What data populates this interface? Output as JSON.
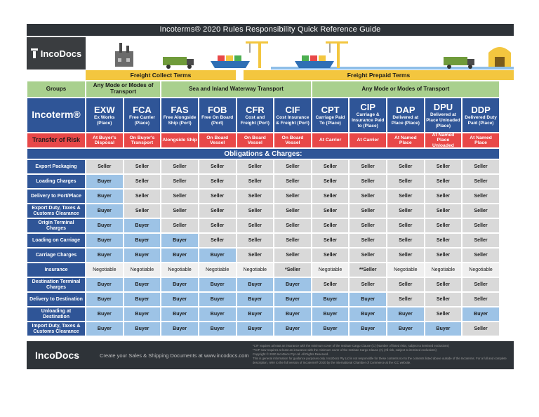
{
  "title": "Incoterms® 2020 Rules Responsibility Quick Reference Guide",
  "brand": "IncoDocs",
  "sections": {
    "collect": "Freight Collect Terms",
    "prepaid": "Freight Prepaid Terms"
  },
  "groups_label": "Groups",
  "groups": {
    "any_mode_1": "Any Mode or Modes of Transport",
    "sea": "Sea and Inland Waterway Transport",
    "any_mode_2": "Any Mode or Modes of Transport"
  },
  "incoterm_label": "Incoterm®",
  "risk_label": "Transfer of Risk",
  "obligations_label": "Obligations & Charges:",
  "terms": [
    {
      "code": "EXW",
      "desc": "Ex Works (Place)",
      "risk": "At Buyer's Disposal"
    },
    {
      "code": "FCA",
      "desc": "Free Carrier (Place)",
      "risk": "On Buyer's Transport"
    },
    {
      "code": "FAS",
      "desc": "Free Alongside Ship (Port)",
      "risk": "Alongside Ship"
    },
    {
      "code": "FOB",
      "desc": "Free On Board (Port)",
      "risk": "On Board Vessel"
    },
    {
      "code": "CFR",
      "desc": "Cost and Freight (Port)",
      "risk": "On Board Vessel"
    },
    {
      "code": "CIF",
      "desc": "Cost Insurance & Freight (Port)",
      "risk": "On Board Vessel"
    },
    {
      "code": "CPT",
      "desc": "Carriage Paid To (Place)",
      "risk": "At Carrier"
    },
    {
      "code": "CIP",
      "desc": "Carriage & Insurance Paid to (Place)",
      "risk": "At Carrier"
    },
    {
      "code": "DAP",
      "desc": "Delivered at Place (Place)",
      "risk": "At Named Place"
    },
    {
      "code": "DPU",
      "desc": "Delivered at Place Unloaded (Place)",
      "risk": "At Named Place Unloaded"
    },
    {
      "code": "DDP",
      "desc": "Delivered Duty Paid (Place)",
      "risk": "At Named Place"
    }
  ],
  "rows": [
    {
      "label": "Export Packaging",
      "values": [
        "Seller",
        "Seller",
        "Seller",
        "Seller",
        "Seller",
        "Seller",
        "Seller",
        "Seller",
        "Seller",
        "Seller",
        "Seller"
      ]
    },
    {
      "label": "Loading Charges",
      "values": [
        "Buyer",
        "Seller",
        "Seller",
        "Seller",
        "Seller",
        "Seller",
        "Seller",
        "Seller",
        "Seller",
        "Seller",
        "Seller"
      ]
    },
    {
      "label": "Delivery to Port/Place",
      "values": [
        "Buyer",
        "Seller",
        "Seller",
        "Seller",
        "Seller",
        "Seller",
        "Seller",
        "Seller",
        "Seller",
        "Seller",
        "Seller"
      ]
    },
    {
      "label": "Export Duty, Taxes & Customs Clearance",
      "values": [
        "Buyer",
        "Seller",
        "Seller",
        "Seller",
        "Seller",
        "Seller",
        "Seller",
        "Seller",
        "Seller",
        "Seller",
        "Seller"
      ]
    },
    {
      "label": "Origin Terminal Charges",
      "values": [
        "Buyer",
        "Buyer",
        "Seller",
        "Seller",
        "Seller",
        "Seller",
        "Seller",
        "Seller",
        "Seller",
        "Seller",
        "Seller"
      ]
    },
    {
      "label": "Loading on Carriage",
      "values": [
        "Buyer",
        "Buyer",
        "Buyer",
        "Seller",
        "Seller",
        "Seller",
        "Seller",
        "Seller",
        "Seller",
        "Seller",
        "Seller"
      ]
    },
    {
      "label": "Carriage Charges",
      "values": [
        "Buyer",
        "Buyer",
        "Buyer",
        "Buyer",
        "Seller",
        "Seller",
        "Seller",
        "Seller",
        "Seller",
        "Seller",
        "Seller"
      ]
    },
    {
      "label": "Insurance",
      "values": [
        "Negotiable",
        "Negotiable",
        "Negotiable",
        "Negotiable",
        "Negotiable",
        "*Seller",
        "Negotiable",
        "**Seller",
        "Negotiable",
        "Negotiable",
        "Negotiable"
      ]
    },
    {
      "label": "Destination Terminal Charges",
      "values": [
        "Buyer",
        "Buyer",
        "Buyer",
        "Buyer",
        "Buyer",
        "Buyer",
        "Seller",
        "Seller",
        "Seller",
        "Seller",
        "Seller"
      ]
    },
    {
      "label": "Delivery to Destination",
      "values": [
        "Buyer",
        "Buyer",
        "Buyer",
        "Buyer",
        "Buyer",
        "Buyer",
        "Buyer",
        "Buyer",
        "Seller",
        "Seller",
        "Seller"
      ]
    },
    {
      "label": "Unloading at Destination",
      "values": [
        "Buyer",
        "Buyer",
        "Buyer",
        "Buyer",
        "Buyer",
        "Buyer",
        "Buyer",
        "Buyer",
        "Buyer",
        "Seller",
        "Buyer"
      ]
    },
    {
      "label": "Import Duty, Taxes & Customs Clearance",
      "values": [
        "Buyer",
        "Buyer",
        "Buyer",
        "Buyer",
        "Buyer",
        "Buyer",
        "Buyer",
        "Buyer",
        "Buyer",
        "Buyer",
        "Seller"
      ]
    }
  ],
  "footer": {
    "brand": "IncoDocs",
    "tagline": "Create your Sales & Shipping Documents at www.incodocs.com",
    "note1": "*CIF requires at least an insurance with the minimum cover of the Institute Cargo Clause (C) (Number of listed risks, subject to itemised exclusions)",
    "note2": "**CIP now requires at least an insurance with the minimum cover of the Institute Cargo Clause (A) (All risk, subject to itemised exclusions)",
    "copyright": "Copyright © 2020 IncoDocs Pty Ltd. All Rights Reserved.",
    "disclaimer": "This is general information for guidance purposes only. IncoDocs Pty Ltd is not responsible for these contents nor to the contents listed above outside of the Incoterms. For a full and complete description, refer to the full version of Incoterms® 2020 by the International Chamber of Commerce at the ICC website."
  },
  "colors": {
    "dark": "#2e3338",
    "blue": "#2f5597",
    "yellow": "#f3c63f",
    "green": "#a9d08e",
    "red": "#e84848",
    "seller": "#d9d9d9",
    "buyer": "#9dc3e6"
  }
}
